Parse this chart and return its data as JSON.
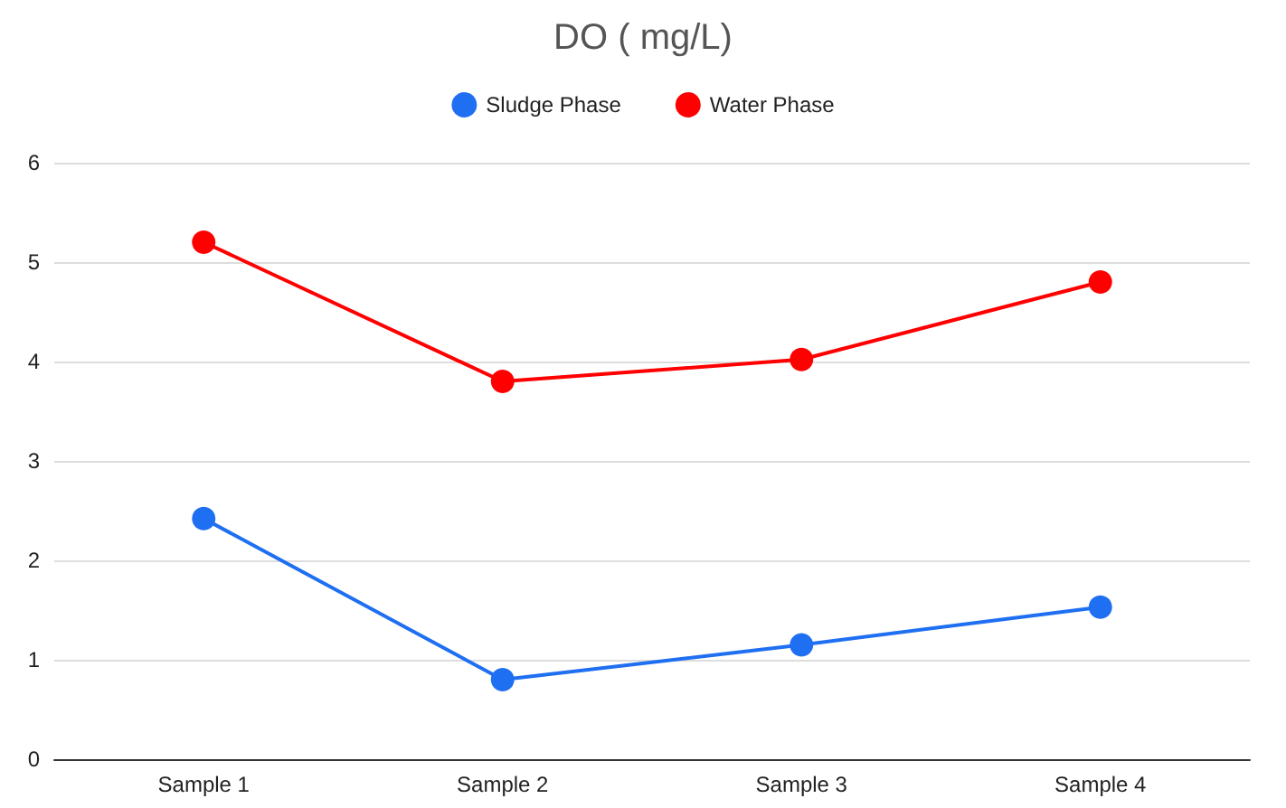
{
  "chart_data": {
    "type": "line",
    "title": "DO ( mg/L)",
    "categories": [
      "Sample 1",
      "Sample 2",
      "Sample 3",
      "Sample 4"
    ],
    "series": [
      {
        "name": "Sludge Phase",
        "color": "#1f6ff2",
        "values": [
          2.42,
          0.8,
          1.15,
          1.53
        ]
      },
      {
        "name": "Water Phase",
        "color": "#ff0000",
        "values": [
          5.2,
          3.8,
          4.02,
          4.8
        ]
      }
    ],
    "ylim": [
      0,
      6
    ],
    "yticks": [
      0,
      1,
      2,
      3,
      4,
      5,
      6
    ],
    "grid": "y",
    "legend": "top",
    "marker": "circle",
    "line_style": "solid"
  }
}
